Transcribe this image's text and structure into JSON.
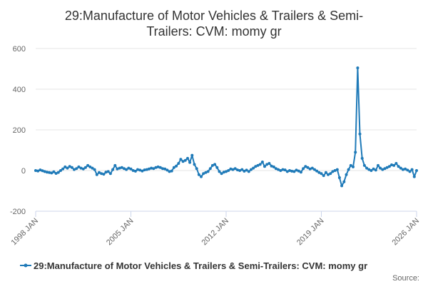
{
  "chart_data": {
    "type": "line",
    "title_lines": [
      "29:Manufacture of Motor Vehicles & Trailers & Semi-",
      "Trailers: CVM: momy gr"
    ],
    "xlabel": "",
    "ylabel": "",
    "ylim": [
      -200,
      600
    ],
    "y_ticks": [
      -200,
      0,
      200,
      400,
      600
    ],
    "y_tick_labels": [
      "-200",
      "0",
      "200",
      "400",
      "600"
    ],
    "xlim": [
      "1998-01",
      "2026-01"
    ],
    "x_ticks": [
      "1998-01",
      "2005-01",
      "2012-01",
      "2019-01",
      "2026-01"
    ],
    "x_tick_labels": [
      "1998 JAN",
      "2005 JAN",
      "2012 JAN",
      "2019 JAN",
      "2026 JAN"
    ],
    "grid": "horizontal",
    "legend_position": "bottom",
    "series": [
      {
        "name": "29:Manufacture of Motor Vehicles & Trailers & Semi-Trailers: CVM: momy gr",
        "color": "#1f7ab8",
        "points": [
          [
            "1998-01",
            0
          ],
          [
            "1998-03",
            -2
          ],
          [
            "1998-05",
            3
          ],
          [
            "1998-07",
            -1
          ],
          [
            "1998-09",
            -5
          ],
          [
            "1998-11",
            -8
          ],
          [
            "1999-01",
            -10
          ],
          [
            "1999-03",
            -12
          ],
          [
            "1999-05",
            -6
          ],
          [
            "1999-07",
            -14
          ],
          [
            "1999-09",
            -9
          ],
          [
            "1999-11",
            0
          ],
          [
            "2000-01",
            8
          ],
          [
            "2000-03",
            18
          ],
          [
            "2000-05",
            12
          ],
          [
            "2000-07",
            20
          ],
          [
            "2000-09",
            15
          ],
          [
            "2000-11",
            5
          ],
          [
            "2001-01",
            10
          ],
          [
            "2001-03",
            18
          ],
          [
            "2001-05",
            12
          ],
          [
            "2001-07",
            8
          ],
          [
            "2001-09",
            15
          ],
          [
            "2001-11",
            25
          ],
          [
            "2002-01",
            18
          ],
          [
            "2002-03",
            12
          ],
          [
            "2002-05",
            5
          ],
          [
            "2002-07",
            -20
          ],
          [
            "2002-09",
            -10
          ],
          [
            "2002-11",
            -15
          ],
          [
            "2003-01",
            -18
          ],
          [
            "2003-03",
            -8
          ],
          [
            "2003-05",
            -5
          ],
          [
            "2003-07",
            -15
          ],
          [
            "2003-09",
            5
          ],
          [
            "2003-11",
            25
          ],
          [
            "2004-01",
            8
          ],
          [
            "2004-03",
            12
          ],
          [
            "2004-05",
            15
          ],
          [
            "2004-07",
            10
          ],
          [
            "2004-09",
            5
          ],
          [
            "2004-11",
            12
          ],
          [
            "2005-01",
            8
          ],
          [
            "2005-03",
            0
          ],
          [
            "2005-05",
            -3
          ],
          [
            "2005-07",
            5
          ],
          [
            "2005-09",
            2
          ],
          [
            "2005-11",
            -2
          ],
          [
            "2006-01",
            3
          ],
          [
            "2006-03",
            5
          ],
          [
            "2006-05",
            8
          ],
          [
            "2006-07",
            12
          ],
          [
            "2006-09",
            10
          ],
          [
            "2006-11",
            15
          ],
          [
            "2007-01",
            18
          ],
          [
            "2007-03",
            15
          ],
          [
            "2007-05",
            10
          ],
          [
            "2007-07",
            8
          ],
          [
            "2007-09",
            2
          ],
          [
            "2007-11",
            -5
          ],
          [
            "2008-01",
            -2
          ],
          [
            "2008-03",
            15
          ],
          [
            "2008-05",
            22
          ],
          [
            "2008-07",
            35
          ],
          [
            "2008-09",
            55
          ],
          [
            "2008-11",
            45
          ],
          [
            "2009-01",
            50
          ],
          [
            "2009-03",
            60
          ],
          [
            "2009-05",
            40
          ],
          [
            "2009-07",
            75
          ],
          [
            "2009-09",
            30
          ],
          [
            "2009-11",
            10
          ],
          [
            "2010-01",
            -20
          ],
          [
            "2010-03",
            -30
          ],
          [
            "2010-05",
            -15
          ],
          [
            "2010-07",
            -10
          ],
          [
            "2010-09",
            -5
          ],
          [
            "2010-11",
            10
          ],
          [
            "2011-01",
            25
          ],
          [
            "2011-03",
            30
          ],
          [
            "2011-05",
            15
          ],
          [
            "2011-07",
            -5
          ],
          [
            "2011-09",
            -15
          ],
          [
            "2011-11",
            -8
          ],
          [
            "2012-01",
            -5
          ],
          [
            "2012-03",
            0
          ],
          [
            "2012-05",
            8
          ],
          [
            "2012-07",
            5
          ],
          [
            "2012-09",
            10
          ],
          [
            "2012-11",
            3
          ],
          [
            "2013-01",
            0
          ],
          [
            "2013-03",
            5
          ],
          [
            "2013-05",
            -3
          ],
          [
            "2013-07",
            2
          ],
          [
            "2013-09",
            -5
          ],
          [
            "2013-11",
            5
          ],
          [
            "2014-01",
            12
          ],
          [
            "2014-03",
            20
          ],
          [
            "2014-05",
            25
          ],
          [
            "2014-07",
            30
          ],
          [
            "2014-09",
            42
          ],
          [
            "2014-11",
            20
          ],
          [
            "2015-01",
            30
          ],
          [
            "2015-03",
            35
          ],
          [
            "2015-05",
            22
          ],
          [
            "2015-07",
            18
          ],
          [
            "2015-09",
            10
          ],
          [
            "2015-11",
            5
          ],
          [
            "2016-01",
            0
          ],
          [
            "2016-03",
            5
          ],
          [
            "2016-05",
            3
          ],
          [
            "2016-07",
            -5
          ],
          [
            "2016-09",
            0
          ],
          [
            "2016-11",
            -3
          ],
          [
            "2017-01",
            -5
          ],
          [
            "2017-03",
            2
          ],
          [
            "2017-05",
            -2
          ],
          [
            "2017-07",
            -8
          ],
          [
            "2017-09",
            10
          ],
          [
            "2017-11",
            20
          ],
          [
            "2018-01",
            15
          ],
          [
            "2018-03",
            8
          ],
          [
            "2018-05",
            12
          ],
          [
            "2018-07",
            5
          ],
          [
            "2018-09",
            -2
          ],
          [
            "2018-11",
            -10
          ],
          [
            "2019-01",
            -15
          ],
          [
            "2019-03",
            -25
          ],
          [
            "2019-05",
            -10
          ],
          [
            "2019-07",
            -20
          ],
          [
            "2019-09",
            -15
          ],
          [
            "2019-11",
            -5
          ],
          [
            "2020-01",
            0
          ],
          [
            "2020-03",
            5
          ],
          [
            "2020-05",
            -35
          ],
          [
            "2020-07",
            -75
          ],
          [
            "2020-09",
            -55
          ],
          [
            "2020-11",
            -20
          ],
          [
            "2021-01",
            5
          ],
          [
            "2021-03",
            25
          ],
          [
            "2021-05",
            18
          ],
          [
            "2021-07",
            90
          ],
          [
            "2021-09",
            505
          ],
          [
            "2021-11",
            180
          ],
          [
            "2022-01",
            60
          ],
          [
            "2022-03",
            25
          ],
          [
            "2022-05",
            12
          ],
          [
            "2022-07",
            5
          ],
          [
            "2022-09",
            0
          ],
          [
            "2022-11",
            8
          ],
          [
            "2023-01",
            2
          ],
          [
            "2023-03",
            25
          ],
          [
            "2023-05",
            12
          ],
          [
            "2023-07",
            5
          ],
          [
            "2023-09",
            10
          ],
          [
            "2023-11",
            15
          ],
          [
            "2024-01",
            20
          ],
          [
            "2024-03",
            28
          ],
          [
            "2024-05",
            25
          ],
          [
            "2024-07",
            35
          ],
          [
            "2024-09",
            20
          ],
          [
            "2024-11",
            12
          ],
          [
            "2025-01",
            5
          ],
          [
            "2025-03",
            8
          ],
          [
            "2025-05",
            2
          ],
          [
            "2025-07",
            -5
          ],
          [
            "2025-09",
            5
          ],
          [
            "2025-11",
            -30
          ],
          [
            "2026-01",
            0
          ]
        ]
      }
    ],
    "source_label": "Source:"
  }
}
